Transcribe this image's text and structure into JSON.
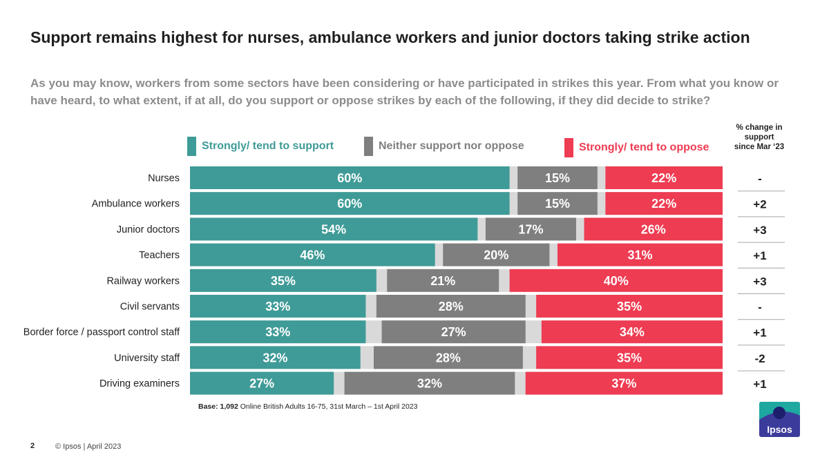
{
  "header": {
    "title": "Support remains highest for nurses, ambulance workers and junior doctors taking strike action",
    "subtitle": "As you may know, workers from some sectors have been considering or have participated in strikes this year.  From what you know or have heard, to what extent, if at all, do you support or oppose strikes by each of the following, if they did decide to strike?"
  },
  "legend": [
    {
      "label": "Strongly/ tend to support",
      "color": "#3f9b97"
    },
    {
      "label": "Neither support nor oppose",
      "color": "#7f7f7f"
    },
    {
      "label": "Strongly/ tend to oppose",
      "color": "#ee3c52"
    }
  ],
  "change_header": "% change in support since Mar ‘23",
  "chart_data": {
    "type": "bar",
    "orientation": "horizontal",
    "stacked": true,
    "categories": [
      "Nurses",
      "Ambulance workers",
      "Junior doctors",
      "Teachers",
      "Railway workers",
      "Civil servants",
      "Border force / passport control staff",
      "University staff",
      "Driving examiners"
    ],
    "series": [
      {
        "name": "Strongly/ tend to support",
        "color": "#3f9b97",
        "values": [
          60,
          60,
          54,
          46,
          35,
          33,
          33,
          32,
          27
        ]
      },
      {
        "name": "Neither support nor oppose",
        "color": "#7f7f7f",
        "values": [
          15,
          15,
          17,
          20,
          21,
          28,
          27,
          28,
          32
        ]
      },
      {
        "name": "Strongly/ tend to oppose",
        "color": "#ee3c52",
        "values": [
          22,
          22,
          26,
          31,
          40,
          35,
          34,
          35,
          37
        ]
      }
    ],
    "remainder_color": "#d9d9d9",
    "value_labels": [
      [
        "60%",
        "15%",
        "22%"
      ],
      [
        "60%",
        "15%",
        "22%"
      ],
      [
        "54%",
        "17%",
        "26%"
      ],
      [
        "46%",
        "20%",
        "31%"
      ],
      [
        "35%",
        "21%",
        "40%"
      ],
      [
        "33%",
        "28%",
        "35%"
      ],
      [
        "33%",
        "27%",
        "34%"
      ],
      [
        "32%",
        "28%",
        "35%"
      ],
      [
        "27%",
        "32%",
        "37%"
      ]
    ],
    "change_in_support": [
      "-",
      "+2",
      "+3",
      "+1",
      "+3",
      "-",
      "+1",
      "-2",
      "+1"
    ],
    "xlim": [
      0,
      100
    ]
  },
  "footer": {
    "base_label": "Base: 1,092",
    "base_text": " Online British Adults 16-75, 31st March – 1st April 2023",
    "page_number": "2",
    "copyright": "© Ipsos | April 2023",
    "logo_text": "Ipsos"
  }
}
